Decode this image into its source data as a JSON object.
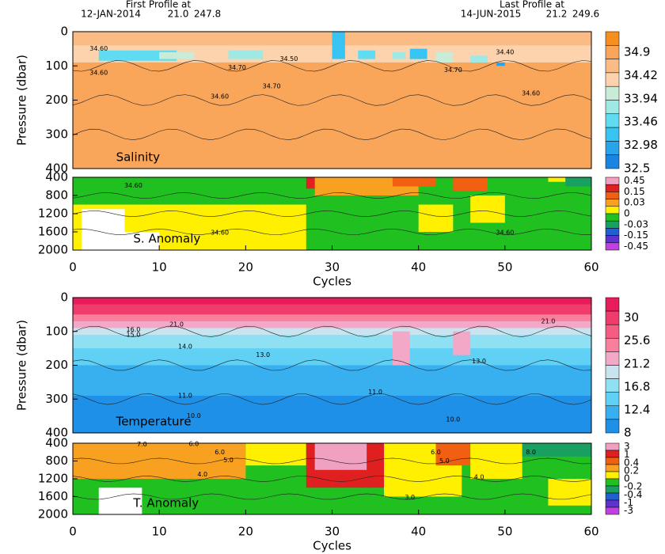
{
  "header": {
    "first": "First Profile at",
    "first_date": "12-JAN-2014",
    "first_lat": "21.0",
    "first_lon": "247.8",
    "last": "Last Profile at",
    "last_date": "14-JUN-2015",
    "last_lat": "21.2",
    "last_lon": "249.6"
  },
  "chart_data": [
    {
      "type": "heatmap",
      "label": "Salinity",
      "ylabel": "Pressure (dbar)",
      "xlim": [
        0,
        60
      ],
      "ylim": [
        0,
        400
      ],
      "yticks": [
        0,
        100,
        200,
        300,
        400
      ],
      "colorbar": {
        "ticks": [
          34.9,
          34.42,
          33.94,
          33.46,
          32.98,
          32.5
        ],
        "colors": [
          "#f58f1e",
          "#f9a55a",
          "#fbbb84",
          "#fdd3ad",
          "#c8ecd8",
          "#a0e8e4",
          "#60dcf2",
          "#38c4f2",
          "#28a4ea",
          "#1a84e2"
        ]
      },
      "annotations": [
        {
          "text": "34.60",
          "x": 3,
          "y": 50
        },
        {
          "text": "34.60",
          "x": 3,
          "y": 120
        },
        {
          "text": "34.70",
          "x": 19,
          "y": 105
        },
        {
          "text": "34.50",
          "x": 25,
          "y": 80
        },
        {
          "text": "34.70",
          "x": 23,
          "y": 160
        },
        {
          "text": "34.60",
          "x": 17,
          "y": 190
        },
        {
          "text": "34.40",
          "x": 50,
          "y": 60
        },
        {
          "text": "34.70",
          "x": 44,
          "y": 112
        },
        {
          "text": "34.60",
          "x": 53,
          "y": 180
        }
      ]
    },
    {
      "type": "heatmap",
      "label": "S. Anomaly",
      "xlabel": "Cycles",
      "xlim": [
        0,
        60
      ],
      "xticks": [
        0,
        10,
        20,
        30,
        40,
        50,
        60
      ],
      "ylim": [
        400,
        2000
      ],
      "yticks": [
        400,
        800,
        1200,
        1600,
        2000
      ],
      "colorbar": {
        "ticks": [
          0.45,
          0.15,
          0.03,
          0,
          -0.03,
          -0.15,
          -0.45
        ],
        "colors": [
          "#f0a0c0",
          "#e02020",
          "#f06010",
          "#f8a020",
          "#fff000",
          "#20c020",
          "#18a060",
          "#2060d0",
          "#6030d0",
          "#c040e0"
        ]
      },
      "annotations": [
        {
          "text": "34.60",
          "x": 7,
          "y": 580
        },
        {
          "text": "34.60",
          "x": 17,
          "y": 1620
        },
        {
          "text": "34.60",
          "x": 50,
          "y": 1620
        }
      ]
    },
    {
      "type": "heatmap",
      "label": "Temperature",
      "ylabel": "Pressure (dbar)",
      "xlim": [
        0,
        60
      ],
      "ylim": [
        0,
        400
      ],
      "yticks": [
        0,
        100,
        200,
        300,
        400
      ],
      "colorbar": {
        "ticks": [
          30,
          25.6,
          21.2,
          16.8,
          12.4,
          8
        ],
        "colors": [
          "#e81c5a",
          "#f03c6c",
          "#f55c82",
          "#f8809c",
          "#f4a8c8",
          "#c8e4f0",
          "#90e0f4",
          "#60d0f4",
          "#38b0f0",
          "#1e90e8"
        ]
      },
      "annotations": [
        {
          "text": "21.0",
          "x": 12,
          "y": 80
        },
        {
          "text": "16.0",
          "x": 7,
          "y": 95
        },
        {
          "text": "15.0",
          "x": 7,
          "y": 110
        },
        {
          "text": "14.0",
          "x": 13,
          "y": 145
        },
        {
          "text": "13.0",
          "x": 22,
          "y": 170
        },
        {
          "text": "11.0",
          "x": 13,
          "y": 290
        },
        {
          "text": "10.0",
          "x": 14,
          "y": 350
        },
        {
          "text": "11.0",
          "x": 35,
          "y": 280
        },
        {
          "text": "13.0",
          "x": 47,
          "y": 188
        },
        {
          "text": "10.0",
          "x": 44,
          "y": 360
        },
        {
          "text": "21.0",
          "x": 55,
          "y": 70
        }
      ]
    },
    {
      "type": "heatmap",
      "label": "T. Anomaly",
      "xlabel": "Cycles",
      "xlim": [
        0,
        60
      ],
      "xticks": [
        0,
        10,
        20,
        30,
        40,
        50,
        60
      ],
      "ylim": [
        400,
        2000
      ],
      "yticks": [
        400,
        800,
        1200,
        1600,
        2000
      ],
      "colorbar": {
        "ticks": [
          3,
          1,
          0.4,
          0.2,
          0,
          -0.2,
          -0.4,
          -1,
          -3
        ],
        "colors": [
          "#f0a0c0",
          "#e02020",
          "#f06010",
          "#f8a020",
          "#fff000",
          "#20c020",
          "#18a060",
          "#2060d0",
          "#6030d0",
          "#c040e0"
        ]
      },
      "annotations": [
        {
          "text": "7.0",
          "x": 8,
          "y": 430
        },
        {
          "text": "6.0",
          "x": 14,
          "y": 420
        },
        {
          "text": "6.0",
          "x": 17,
          "y": 600
        },
        {
          "text": "5.0",
          "x": 18,
          "y": 780
        },
        {
          "text": "4.0",
          "x": 15,
          "y": 1100
        },
        {
          "text": "3.0",
          "x": 39,
          "y": 1620
        },
        {
          "text": "6.0",
          "x": 42,
          "y": 600
        },
        {
          "text": "5.0",
          "x": 43,
          "y": 800
        },
        {
          "text": "4.0",
          "x": 47,
          "y": 1160
        },
        {
          "text": "8.0",
          "x": 53,
          "y": 600
        }
      ]
    }
  ]
}
